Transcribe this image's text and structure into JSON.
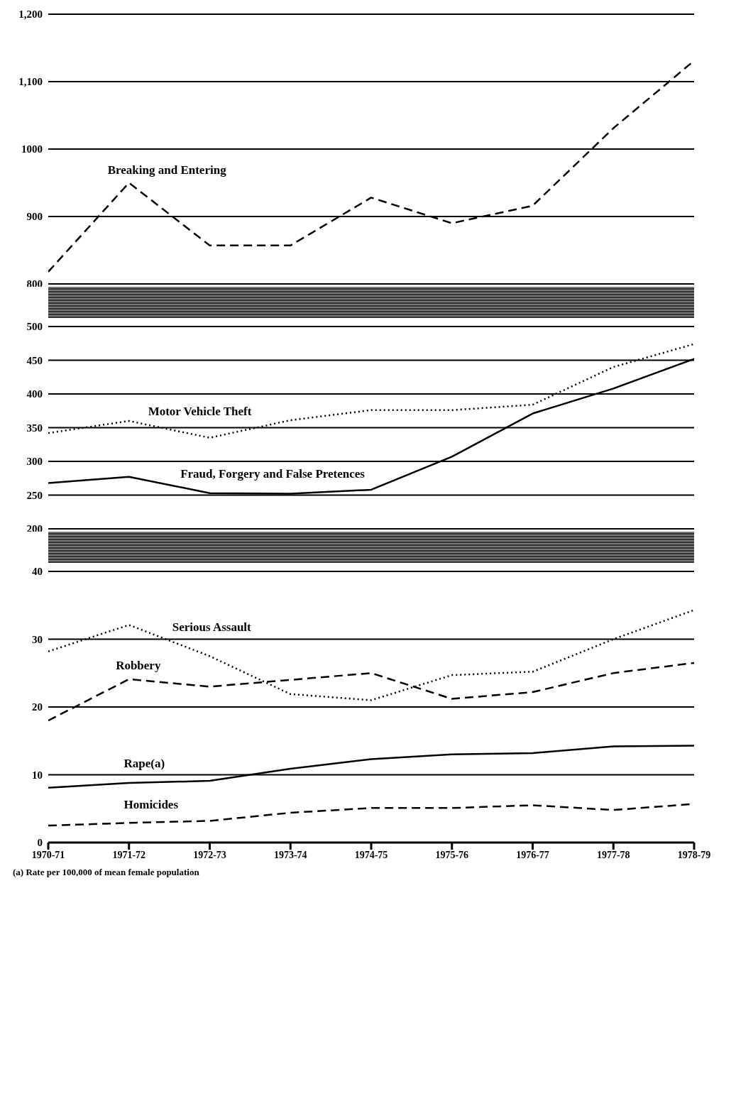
{
  "chart_data": [
    {
      "type": "line",
      "categories": [
        "1970-71",
        "1971-72",
        "1972-73",
        "1973-74",
        "1974-75",
        "1975-76",
        "1976-77",
        "1977-78",
        "1978-79"
      ],
      "series": [
        {
          "name": "Breaking and Entering",
          "color": "#000000",
          "line_style": "dashed",
          "values": [
            818,
            950,
            857,
            857,
            928,
            890,
            916,
            1031,
            1131
          ]
        }
      ],
      "ylim": [
        800,
        1200
      ],
      "yticks": [
        800,
        900,
        1000,
        {
          "value": 1100,
          "label": "1,100"
        },
        {
          "value": 1200,
          "label": "1,200"
        }
      ],
      "grid": "y",
      "tick_labels": "y",
      "marker": "none"
    },
    {
      "type": "line",
      "categories": [
        "1970-71",
        "1971-72",
        "1972-73",
        "1973-74",
        "1974-75",
        "1975-76",
        "1976-77",
        "1977-78",
        "1978-79"
      ],
      "series": [
        {
          "name": "Motor Vehicle Theft",
          "color": "#000000",
          "line_style": "dotted",
          "values": [
            342,
            360,
            335,
            361,
            376,
            376,
            384,
            440,
            474
          ]
        },
        {
          "name": "Fraud, Forgery and False Pretences",
          "color": "#000000",
          "line_style": "solid",
          "values": [
            268,
            277,
            253,
            252,
            258,
            307,
            371,
            408,
            452
          ]
        }
      ],
      "ylim": [
        200,
        500
      ],
      "yticks": [
        200,
        250,
        300,
        350,
        400,
        450,
        500
      ],
      "grid": "y",
      "tick_labels": "y",
      "marker": "none"
    },
    {
      "type": "line",
      "categories": [
        "1970-71",
        "1971-72",
        "1972-73",
        "1973-74",
        "1974-75",
        "1975-76",
        "1976-77",
        "1977-78",
        "1978-79"
      ],
      "series": [
        {
          "name": "Serious Assault",
          "color": "#000000",
          "line_style": "dotted",
          "values": [
            28.2,
            32.1,
            27.5,
            21.9,
            21.0,
            24.7,
            25.2,
            30.0,
            34.3
          ]
        },
        {
          "name": "Robbery",
          "color": "#000000",
          "line_style": "dashed",
          "values": [
            18.0,
            24.1,
            23.0,
            24.0,
            25.0,
            21.2,
            22.2,
            25.0,
            26.5
          ]
        },
        {
          "name": "Rape(a)",
          "color": "#000000",
          "line_style": "solid",
          "values": [
            8.1,
            8.8,
            9.1,
            10.9,
            12.3,
            13.0,
            13.2,
            14.2,
            14.3
          ]
        },
        {
          "name": "Homicides",
          "color": "#000000",
          "line_style": "dashed",
          "values": [
            2.5,
            2.9,
            3.2,
            4.4,
            5.1,
            5.1,
            5.5,
            4.8,
            5.7
          ]
        }
      ],
      "ylim": [
        0,
        40
      ],
      "yticks": [
        0,
        10,
        20,
        30,
        40
      ],
      "grid": "y",
      "marker": "none",
      "annotations": [
        "(a) Rate per 100,000 of mean female population"
      ]
    }
  ]
}
